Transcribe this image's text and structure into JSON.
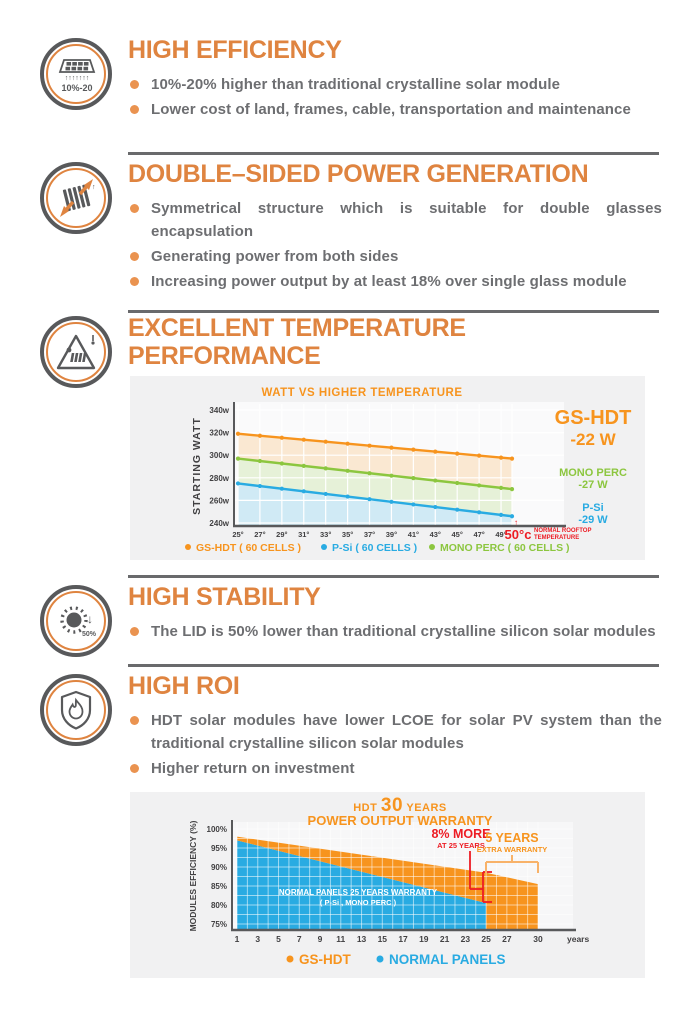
{
  "colors": {
    "heading": "#DF8440",
    "body_text": "#6D6E71",
    "divider": "#696A6C",
    "orange": "#F7941E",
    "blue": "#29ABE2",
    "green": "#8CC63F",
    "red": "#ED1C24",
    "panel_bg": "#F1F1F2"
  },
  "sections": [
    {
      "title": "HIGH EFFICIENCY",
      "icon": "solar-panel-icon",
      "icon_badge": "10%-20",
      "bullets": [
        "10%-20% higher than traditional crystalline solar module",
        "Lower cost of land, frames, cable, transportation and maintenance"
      ]
    },
    {
      "title": "DOUBLE–SIDED POWER GENERATION",
      "icon": "double-sided-panel-icon",
      "bullets": [
        "Symmetrical structure which is suitable for double glasses encapsulation",
        "Generating power from both sides",
        "Increasing power output by at least 18% over single glass module"
      ]
    },
    {
      "title": "EXCELLENT TEMPERATURE PERFORMANCE",
      "icon": "temperature-warning-icon",
      "bullets": []
    },
    {
      "title": "HIGH STABILITY",
      "icon": "sun-lid-icon",
      "icon_badge": "50%",
      "bullets": [
        "The LID is 50% lower than traditional crystalline silicon solar modules"
      ]
    },
    {
      "title": "HIGH ROI",
      "icon": "shield-flame-icon",
      "bullets": [
        "HDT solar modules have lower LCOE for solar PV system than the traditional crystalline silicon solar modules",
        "Higher return on investment"
      ]
    }
  ],
  "chart_data": [
    {
      "type": "line",
      "title": "WATT VS HIGHER TEMPERATURE",
      "ylabel": "STARTING WATT",
      "x_ticks": [
        "25°",
        "27°",
        "29°",
        "31°",
        "33°",
        "35°",
        "37°",
        "39°",
        "41°",
        "43°",
        "45°",
        "47°",
        "49°"
      ],
      "x_range": [
        25,
        50
      ],
      "x_end": {
        "label": "50°c",
        "note_line1": "NORMAL ROOFTOP",
        "note_line2": "TEMPERATURE"
      },
      "y_ticks": [
        "340w",
        "320w",
        "300w",
        "280w",
        "260w",
        "240w"
      ],
      "ylim": [
        235,
        345
      ],
      "grid": true,
      "series": [
        {
          "name": "GS-HDT ( 60 CELLS )",
          "color": "#F7941E",
          "fill": "#F7941E",
          "start": 319,
          "end": 297,
          "label": "GS-HDT",
          "label2": "-22 W"
        },
        {
          "name": "MONO PERC ( 60 CELLS )",
          "color": "#8CC63F",
          "fill": "#8CC63F",
          "start": 297,
          "end": 270,
          "label": "MONO PERC",
          "label2": "-27 W"
        },
        {
          "name": "P-Si ( 60 CELLS )",
          "color": "#29ABE2",
          "fill": "#29ABE2",
          "start": 275,
          "end": 246,
          "label": "P-Si",
          "label2": "-29 W"
        }
      ],
      "legend_order": [
        "GS-HDT ( 60 CELLS )",
        "P-Si ( 60 CELLS )",
        "MONO PERC ( 60 CELLS )"
      ],
      "legend_position": "bottom"
    },
    {
      "type": "area",
      "title": {
        "prefix": "HDT",
        "big": "30",
        "suffix": "YEARS",
        "line2": "POWER OUTPUT WARRANTY"
      },
      "ylabel": "MODULES EFFICIENCY (%)",
      "x_ticks": [
        1,
        3,
        5,
        7,
        9,
        11,
        13,
        15,
        17,
        19,
        21,
        23,
        25,
        27,
        30
      ],
      "x_suffix": "years",
      "x_range": [
        1,
        30
      ],
      "y_ticks": [
        "100%",
        "95%",
        "90%",
        "85%",
        "80%",
        "75%"
      ],
      "ylim": [
        75,
        100
      ],
      "grid": true,
      "series": [
        {
          "name": "GS-HDT",
          "color": "#F7941E",
          "points": [
            [
              1,
              98
            ],
            [
              25,
              88.5
            ],
            [
              30,
              85.5
            ]
          ],
          "drop_to_base_after": 25
        },
        {
          "name": "NORMAL PANELS",
          "color": "#29ABE2",
          "points": [
            [
              1,
              97
            ],
            [
              25,
              80.5
            ]
          ]
        }
      ],
      "annotations": {
        "more": {
          "line1": "8% MORE",
          "line2": "AT 25 YEARS",
          "color": "#ED1C24"
        },
        "extra": {
          "line1": "5 YEARS",
          "line2": "EXTRA WARRANTY",
          "color": "#F7941E"
        },
        "inside_label": {
          "line1": "NORMAL PANELS 25 YEARS WARRANTY",
          "line2": "( P-Si , MONO PERC )"
        }
      },
      "legend": [
        {
          "label": "GS-HDT",
          "color": "#F7941E"
        },
        {
          "label": "NORMAL PANELS",
          "color": "#29ABE2"
        }
      ],
      "legend_position": "bottom"
    }
  ]
}
